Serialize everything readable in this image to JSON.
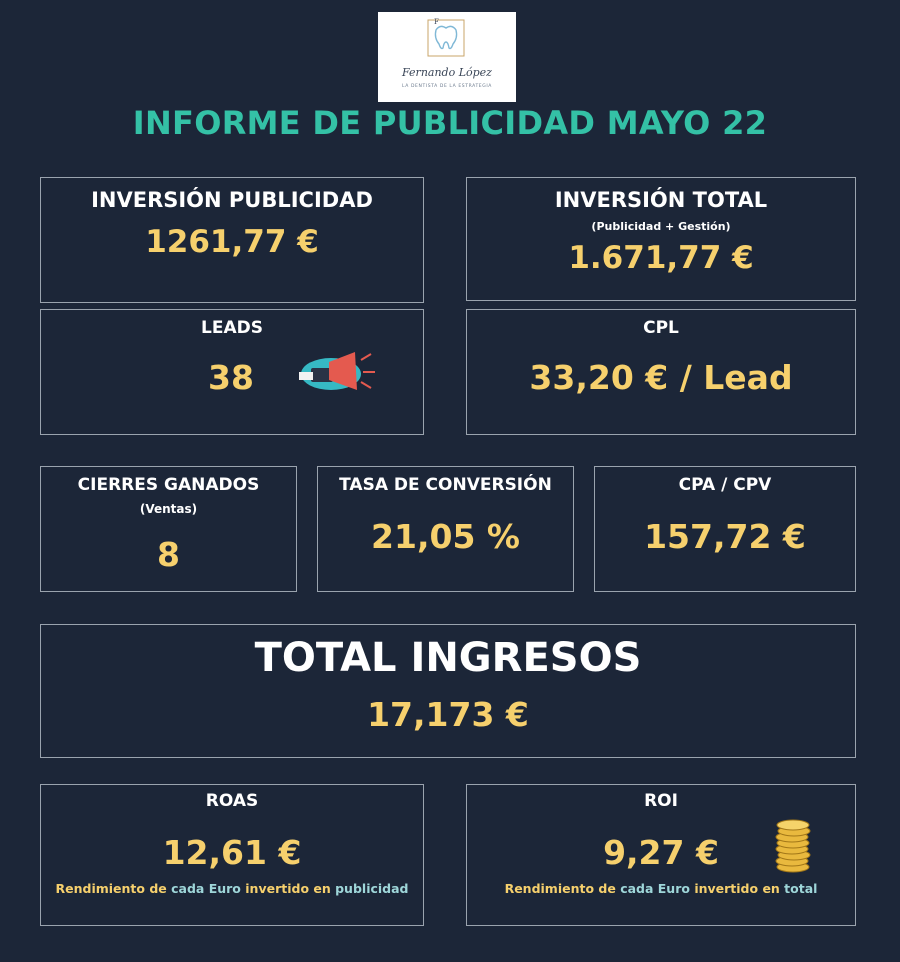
{
  "logo": {
    "brand": "Fernando López",
    "tagline": "LA DENTISTA DE LA ESTRATEGIA"
  },
  "title": "INFORME DE PUBLICIDAD MAYO 22",
  "colors": {
    "background": "#1c2638",
    "title": "#34c1a6",
    "value": "#f6d06d",
    "label": "#ffffff",
    "highlight": "#9ed6d9",
    "border": "#9aa3ae"
  },
  "inversion_publicidad": {
    "label": "INVERSIÓN PUBLICIDAD",
    "value": "1261,77 €"
  },
  "inversion_total": {
    "label": "INVERSIÓN TOTAL",
    "sublabel": "(Publicidad + Gestión)",
    "value": "1.671,77 €"
  },
  "leads": {
    "label": "LEADS",
    "value": "38",
    "icon": "megaphone-icon"
  },
  "cpl": {
    "label": "CPL",
    "value": "33,20 € / Lead"
  },
  "cierres": {
    "label": "CIERRES GANADOS",
    "sublabel": "(Ventas)",
    "value": "8"
  },
  "tasa": {
    "label": "TASA DE CONVERSIÓN",
    "value": "21,05 %"
  },
  "cpa": {
    "label": "CPA / CPV",
    "value": "157,72 €"
  },
  "total_ingresos": {
    "label": "TOTAL INGRESOS",
    "value": "17,173 €"
  },
  "roas": {
    "label": "ROAS",
    "value": "12,61 €",
    "note_a": "Rendimiento de ",
    "note_b": "cada Euro",
    "note_c": " invertido en ",
    "note_d": "publicidad"
  },
  "roi": {
    "label": "ROI",
    "value": "9,27 €",
    "icon": "coins-stack-icon",
    "note_a": "Rendimiento de ",
    "note_b": "cada Euro",
    "note_c": " invertido en ",
    "note_d": "total"
  }
}
